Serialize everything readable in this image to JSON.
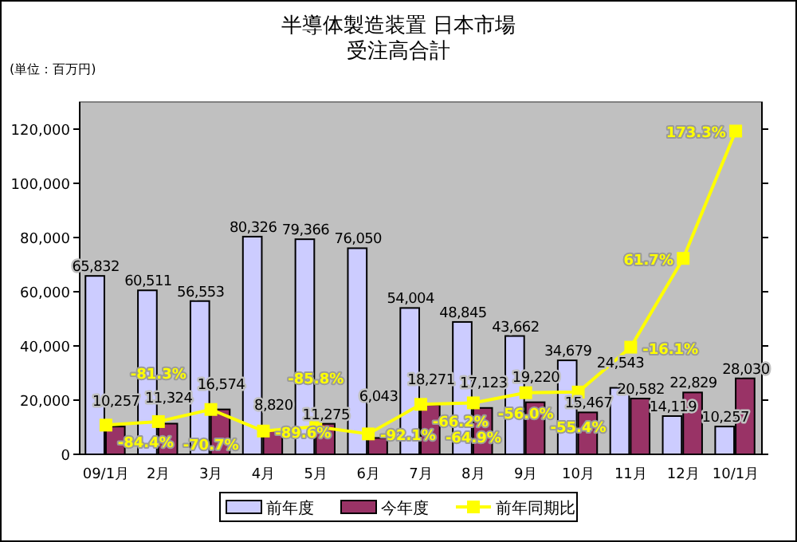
{
  "chart_data": {
    "type": "bar",
    "title": "半導体製造装置 日本市場",
    "subtitle": "受注高合計",
    "ylabel": "(単位：百万円)",
    "categories": [
      "09/1月",
      "2月",
      "3月",
      "4月",
      "5月",
      "6月",
      "7月",
      "8月",
      "9月",
      "10月",
      "11月",
      "12月",
      "10/1月"
    ],
    "series": [
      {
        "name": "前年度",
        "color": "#ccccff",
        "values": [
          65832,
          60511,
          56553,
          80326,
          79366,
          76050,
          54004,
          48845,
          43662,
          34679,
          24543,
          14119,
          10257
        ],
        "value_labels": [
          "65,832",
          "60,511",
          "56,553",
          "80,326",
          "79,366",
          "76,050",
          "54,004",
          "48,845",
          "43,662",
          "34,679",
          "24,543",
          "14,119",
          "10,257"
        ]
      },
      {
        "name": "今年度",
        "color": "#993366",
        "values": [
          10257,
          11324,
          16574,
          8820,
          11275,
          6043,
          18271,
          17123,
          19220,
          15467,
          20582,
          22829,
          28030
        ],
        "value_labels": [
          "10,257",
          "11,324",
          "16,574",
          "8,820",
          "11,275",
          "6,043",
          "18,271",
          "17,123",
          "19,220",
          "15,467",
          "20,582",
          "22,829",
          "28,030"
        ]
      },
      {
        "name": "前年同期比",
        "type": "line",
        "axis": "y2",
        "color": "#ffff00",
        "marker": "square",
        "values": [
          -84.4,
          -81.3,
          -70.7,
          -89.6,
          -85.8,
          -92.1,
          -66.2,
          -64.9,
          -56.0,
          -55.4,
          -16.1,
          61.7,
          173.3
        ],
        "value_labels": [
          "-84.4%",
          "-81.3%",
          "-70.7%",
          "-89.6%",
          "-85.8%",
          "-92.1%",
          "-66.2%",
          "-64.9%",
          "-56.0%",
          "-55.4%",
          "-16.1%",
          "61.7%",
          "173.3%"
        ]
      }
    ],
    "ylim": [
      0,
      130000
    ],
    "yticks": [
      {
        "value": 0,
        "label": "0"
      },
      {
        "value": 20000,
        "label": "20,000"
      },
      {
        "value": 40000,
        "label": "40,000"
      },
      {
        "value": 60000,
        "label": "60,000"
      },
      {
        "value": 80000,
        "label": "80,000"
      },
      {
        "value": 100000,
        "label": "100,000"
      },
      {
        "value": 120000,
        "label": "120,000"
      }
    ],
    "y2lim": [
      -110,
      198.75
    ],
    "y2ticks": [
      {
        "value": -110,
        "label": null
      },
      {
        "value": -62.5,
        "label": null
      },
      {
        "value": -15,
        "label": null
      },
      {
        "value": 32.5,
        "label": null
      },
      {
        "value": 80,
        "label": null
      },
      {
        "value": 127.5,
        "label": null
      },
      {
        "value": 175,
        "label": null
      }
    ],
    "tick_labels": "xy",
    "grid": false,
    "legend": "bottom"
  }
}
